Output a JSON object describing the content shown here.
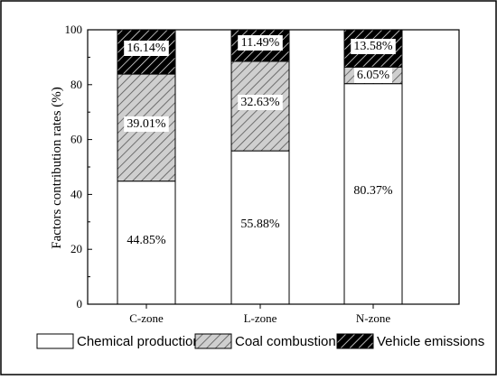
{
  "chart_data": {
    "type": "bar",
    "stacked": true,
    "categories": [
      "C-zone",
      "L-zone",
      "N-zone"
    ],
    "series": [
      {
        "name": "Chemical production",
        "values": [
          44.85,
          55.88,
          80.37
        ],
        "labels": [
          "44.85%",
          "55.88%",
          "80.37%"
        ],
        "pattern": "none"
      },
      {
        "name": "Coal combustion",
        "values": [
          39.01,
          32.63,
          6.05
        ],
        "labels": [
          "39.01%",
          "32.63%",
          "6.05%"
        ],
        "pattern": "hatch-single"
      },
      {
        "name": "Vehicle emissions",
        "values": [
          16.14,
          11.49,
          13.58
        ],
        "labels": [
          "16.14%",
          "11.49%",
          "13.58%"
        ],
        "pattern": "hatch-cross"
      }
    ],
    "ylabel": "Factors contribution rates (%)",
    "xlabel": "",
    "ylim": [
      0,
      100
    ],
    "yticks": [
      0,
      20,
      40,
      60,
      80,
      100
    ],
    "grid": false,
    "legend": "bottom"
  }
}
